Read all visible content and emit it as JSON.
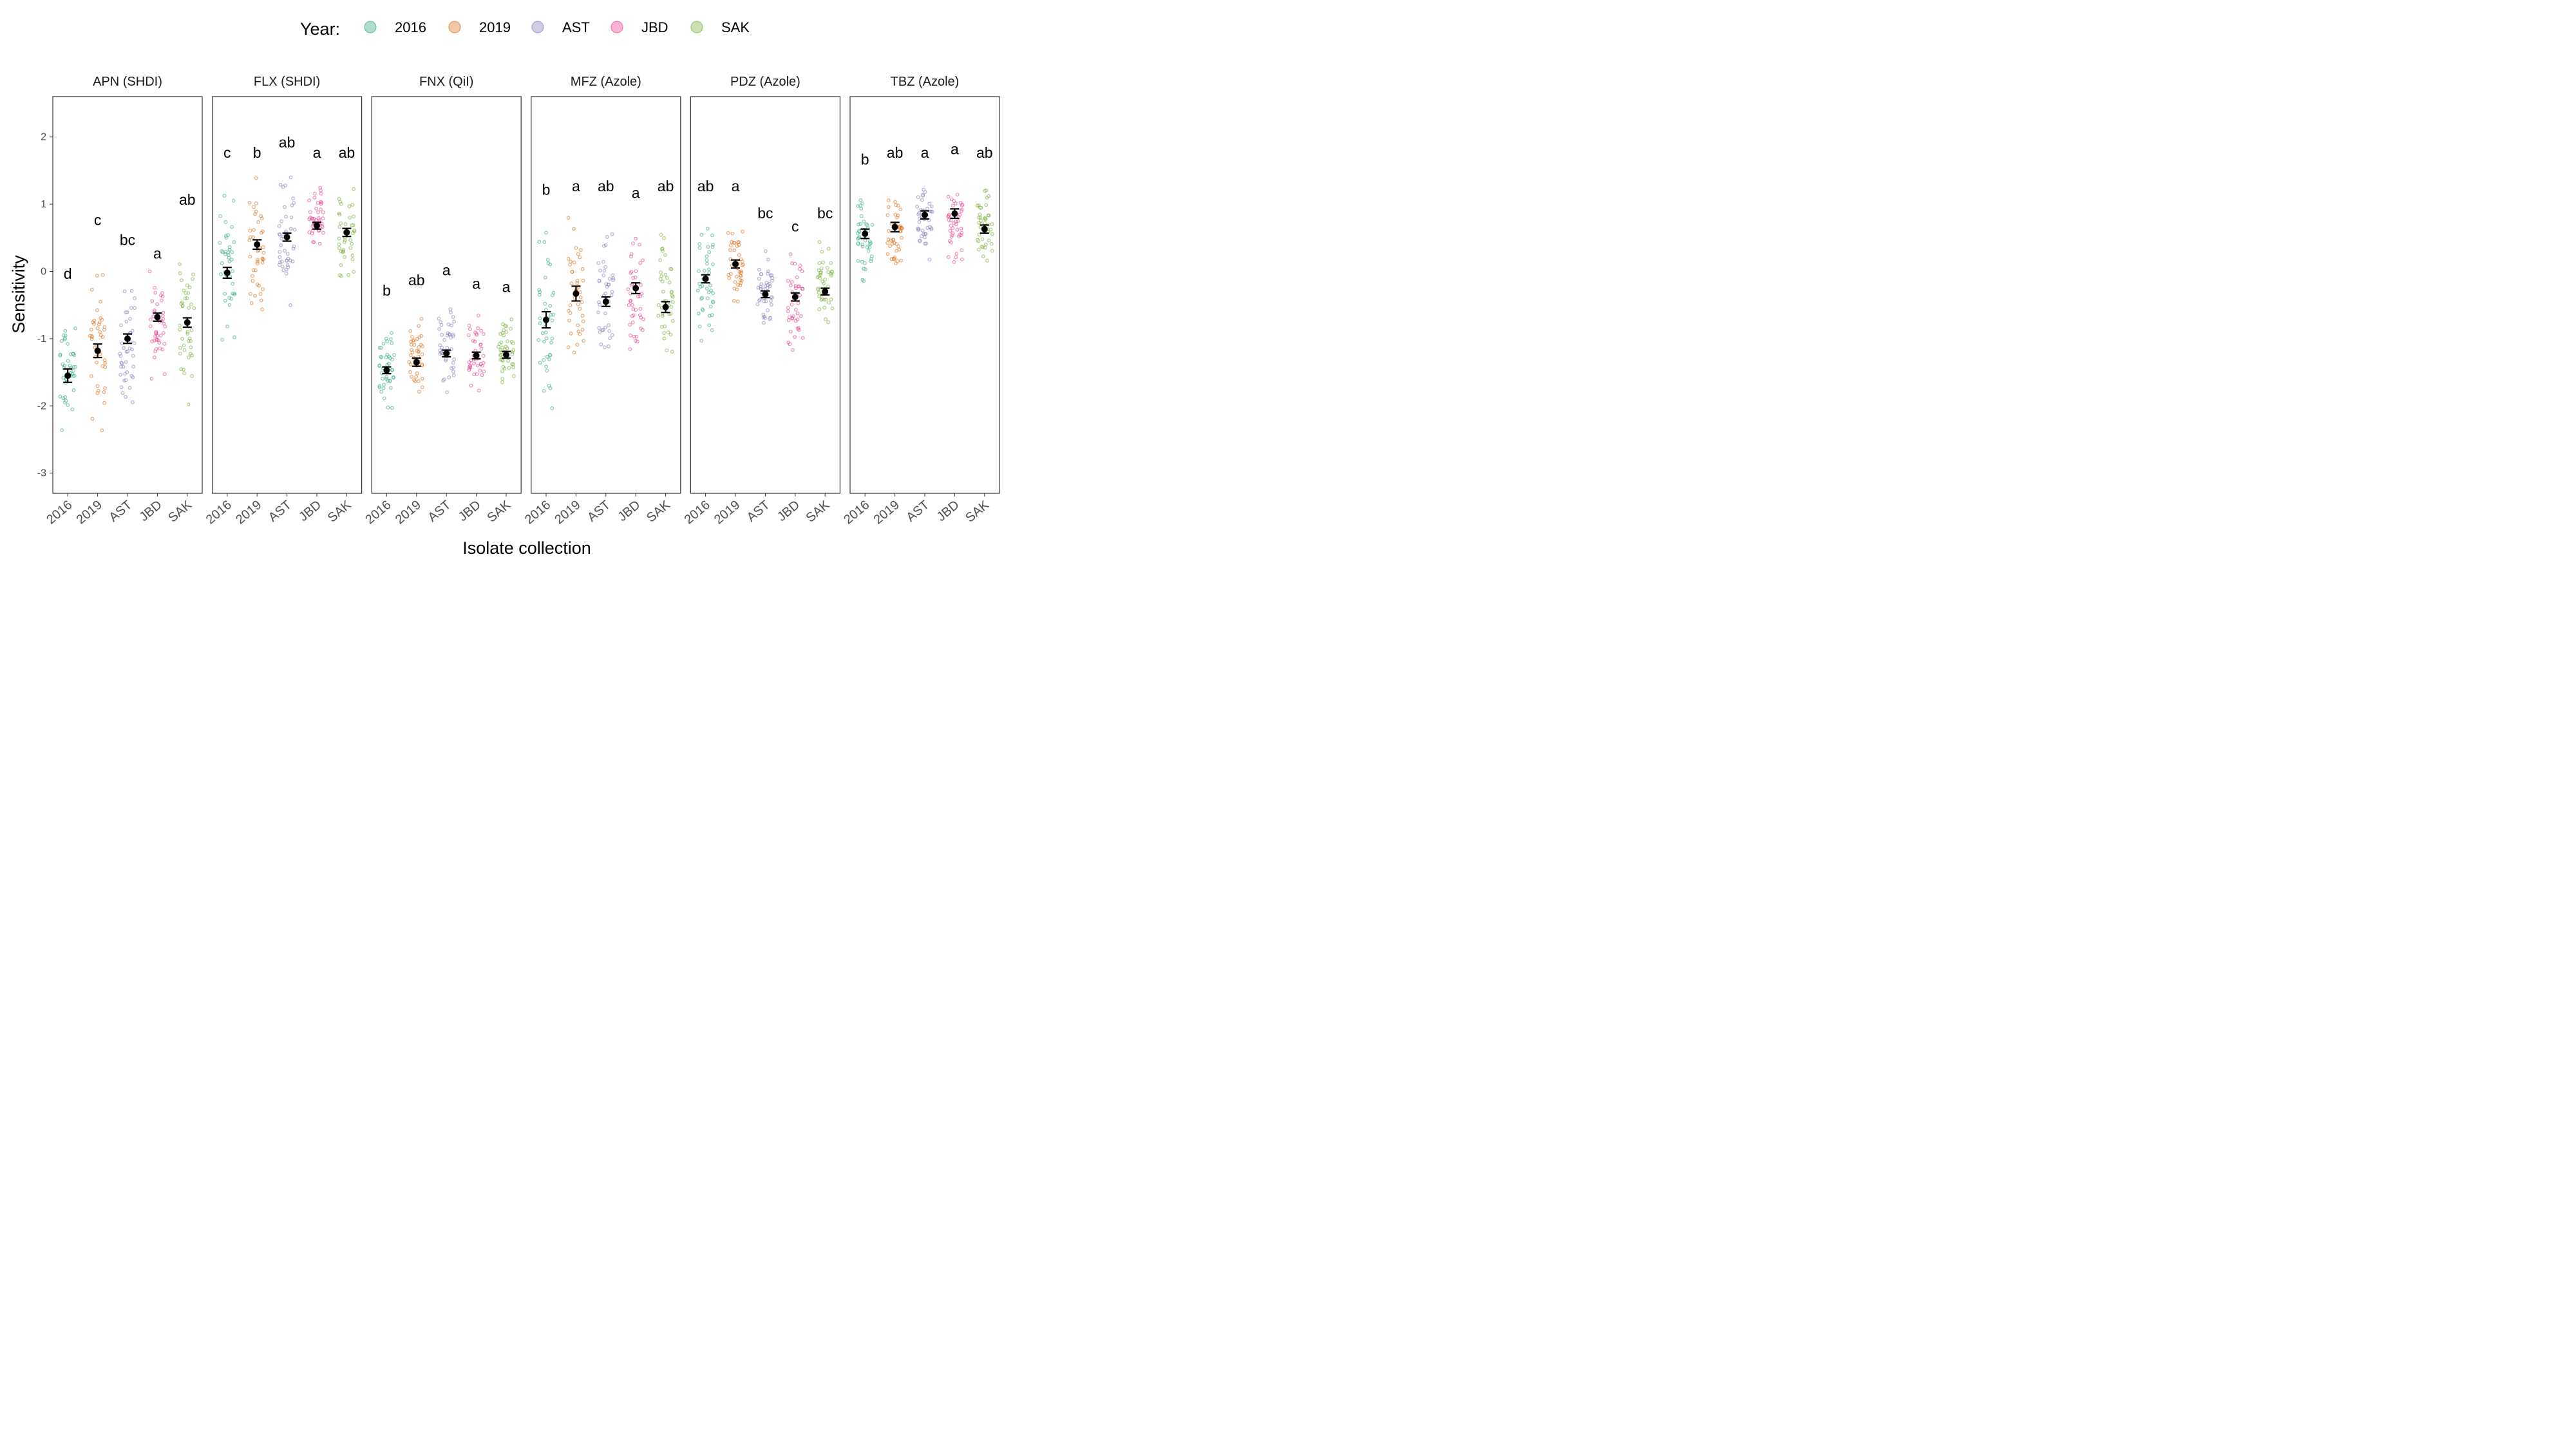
{
  "chart_data": {
    "type": "scatter",
    "subtype": "faceted jittered strip plot with mean ± SE",
    "ylabel": "Sensitivity",
    "xlabel": "Isolate collection",
    "ylim": [
      -3.3,
      2.6
    ],
    "yticks": [
      -3,
      -2,
      -1,
      0,
      1,
      2
    ],
    "categories": [
      "2016",
      "2019",
      "AST",
      "JBD",
      "SAK"
    ],
    "legend": {
      "title": "Year:",
      "placement": "top",
      "items": [
        {
          "label": "2016",
          "color": "#1b9e77"
        },
        {
          "label": "2019",
          "color": "#d95f02"
        },
        {
          "label": "AST",
          "color": "#7570b3"
        },
        {
          "label": "JBD",
          "color": "#e7298a"
        },
        {
          "label": "SAK",
          "color": "#66a61e"
        }
      ]
    },
    "grid": false,
    "panels": [
      {
        "title": "APN (SHDI)",
        "means": [
          -1.55,
          -1.18,
          -1.0,
          -0.68,
          -0.76
        ],
        "se": [
          0.1,
          0.1,
          0.07,
          0.06,
          0.07
        ],
        "letters": [
          "d",
          "c",
          "bc",
          "a",
          "ab"
        ],
        "ranges": [
          [
            -2.6,
            -0.3
          ],
          [
            -2.9,
            0.5
          ],
          [
            -2.4,
            0.2
          ],
          [
            -1.95,
            0.0
          ],
          [
            -2.1,
            0.8
          ]
        ]
      },
      {
        "title": "FLX (SHDI)",
        "means": [
          -0.02,
          0.4,
          0.51,
          0.68,
          0.58
        ],
        "se": [
          0.08,
          0.07,
          0.06,
          0.05,
          0.06
        ],
        "letters": [
          "c",
          "b",
          "ab",
          "a",
          "ab"
        ],
        "ranges": [
          [
            -1.25,
            1.5
          ],
          [
            -0.95,
            1.5
          ],
          [
            -0.7,
            1.65
          ],
          [
            0.1,
            1.5
          ],
          [
            -0.35,
            1.5
          ]
        ]
      },
      {
        "title": "FNX (QiI)",
        "means": [
          -1.47,
          -1.35,
          -1.22,
          -1.25,
          -1.24
        ],
        "se": [
          0.05,
          0.06,
          0.05,
          0.05,
          0.05
        ],
        "letters": [
          "b",
          "ab",
          "a",
          "a",
          "a"
        ],
        "ranges": [
          [
            -2.4,
            -0.55
          ],
          [
            -2.0,
            -0.4
          ],
          [
            -1.9,
            -0.25
          ],
          [
            -2.1,
            -0.45
          ],
          [
            -2.1,
            -0.5
          ]
        ]
      },
      {
        "title": "MFZ (Azole)",
        "means": [
          -0.72,
          -0.33,
          -0.45,
          -0.25,
          -0.53
        ],
        "se": [
          0.12,
          0.11,
          0.07,
          0.08,
          0.08
        ],
        "letters": [
          "b",
          "a",
          "ab",
          "a",
          "ab"
        ],
        "ranges": [
          [
            -2.8,
            0.95
          ],
          [
            -1.95,
            1.0
          ],
          [
            -1.7,
            1.0
          ],
          [
            -1.65,
            0.9
          ],
          [
            -1.6,
            1.0
          ]
        ]
      },
      {
        "title": "PDZ (Azole)",
        "means": [
          -0.11,
          0.11,
          -0.34,
          -0.38,
          -0.3
        ],
        "se": [
          0.06,
          0.06,
          0.05,
          0.06,
          0.05
        ],
        "letters": [
          "ab",
          "a",
          "bc",
          "c",
          "bc"
        ],
        "ranges": [
          [
            -1.38,
            1.0
          ],
          [
            -0.8,
            1.0
          ],
          [
            -0.95,
            0.6
          ],
          [
            -1.35,
            0.4
          ],
          [
            -0.95,
            0.6
          ]
        ]
      },
      {
        "title": "TBZ (Azole)",
        "means": [
          0.56,
          0.66,
          0.84,
          0.86,
          0.63
        ],
        "se": [
          0.07,
          0.07,
          0.06,
          0.07,
          0.06
        ],
        "letters": [
          "b",
          "ab",
          "a",
          "a",
          "ab"
        ],
        "ranges": [
          [
            -0.45,
            1.4
          ],
          [
            -0.35,
            1.5
          ],
          [
            -0.1,
            1.5
          ],
          [
            -0.3,
            1.55
          ],
          [
            -0.15,
            1.5
          ]
        ]
      }
    ]
  }
}
